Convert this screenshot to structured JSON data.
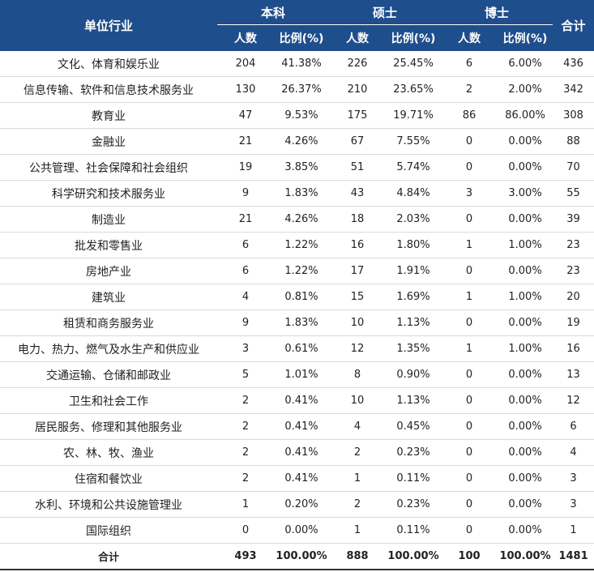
{
  "header": {
    "industry": "单位行业",
    "groups": [
      "本科",
      "硕士",
      "博士"
    ],
    "total": "合计",
    "count_label": "人数",
    "ratio_label": "比例(%)"
  },
  "rows": [
    [
      "文化、体育和娱乐业",
      "204",
      "41.38%",
      "226",
      "25.45%",
      "6",
      "6.00%",
      "436"
    ],
    [
      "信息传输、软件和信息技术服务业",
      "130",
      "26.37%",
      "210",
      "23.65%",
      "2",
      "2.00%",
      "342"
    ],
    [
      "教育业",
      "47",
      "9.53%",
      "175",
      "19.71%",
      "86",
      "86.00%",
      "308"
    ],
    [
      "金融业",
      "21",
      "4.26%",
      "67",
      "7.55%",
      "0",
      "0.00%",
      "88"
    ],
    [
      "公共管理、社会保障和社会组织",
      "19",
      "3.85%",
      "51",
      "5.74%",
      "0",
      "0.00%",
      "70"
    ],
    [
      "科学研究和技术服务业",
      "9",
      "1.83%",
      "43",
      "4.84%",
      "3",
      "3.00%",
      "55"
    ],
    [
      "制造业",
      "21",
      "4.26%",
      "18",
      "2.03%",
      "0",
      "0.00%",
      "39"
    ],
    [
      "批发和零售业",
      "6",
      "1.22%",
      "16",
      "1.80%",
      "1",
      "1.00%",
      "23"
    ],
    [
      "房地产业",
      "6",
      "1.22%",
      "17",
      "1.91%",
      "0",
      "0.00%",
      "23"
    ],
    [
      "建筑业",
      "4",
      "0.81%",
      "15",
      "1.69%",
      "1",
      "1.00%",
      "20"
    ],
    [
      "租赁和商务服务业",
      "9",
      "1.83%",
      "10",
      "1.13%",
      "0",
      "0.00%",
      "19"
    ],
    [
      "电力、热力、燃气及水生产和供应业",
      "3",
      "0.61%",
      "12",
      "1.35%",
      "1",
      "1.00%",
      "16"
    ],
    [
      "交通运输、仓储和邮政业",
      "5",
      "1.01%",
      "8",
      "0.90%",
      "0",
      "0.00%",
      "13"
    ],
    [
      "卫生和社会工作",
      "2",
      "0.41%",
      "10",
      "1.13%",
      "0",
      "0.00%",
      "12"
    ],
    [
      "居民服务、修理和其他服务业",
      "2",
      "0.41%",
      "4",
      "0.45%",
      "0",
      "0.00%",
      "6"
    ],
    [
      "农、林、牧、渔业",
      "2",
      "0.41%",
      "2",
      "0.23%",
      "0",
      "0.00%",
      "4"
    ],
    [
      "住宿和餐饮业",
      "2",
      "0.41%",
      "1",
      "0.11%",
      "0",
      "0.00%",
      "3"
    ],
    [
      "水利、环境和公共设施管理业",
      "1",
      "0.20%",
      "2",
      "0.23%",
      "0",
      "0.00%",
      "3"
    ],
    [
      "国际组织",
      "0",
      "0.00%",
      "1",
      "0.11%",
      "0",
      "0.00%",
      "1"
    ]
  ],
  "total_row": [
    "合计",
    "493",
    "100.00%",
    "888",
    "100.00%",
    "100",
    "100.00%",
    "1481"
  ],
  "colors": {
    "header_bg": "#1f4e8c",
    "header_text": "#ffffff"
  }
}
